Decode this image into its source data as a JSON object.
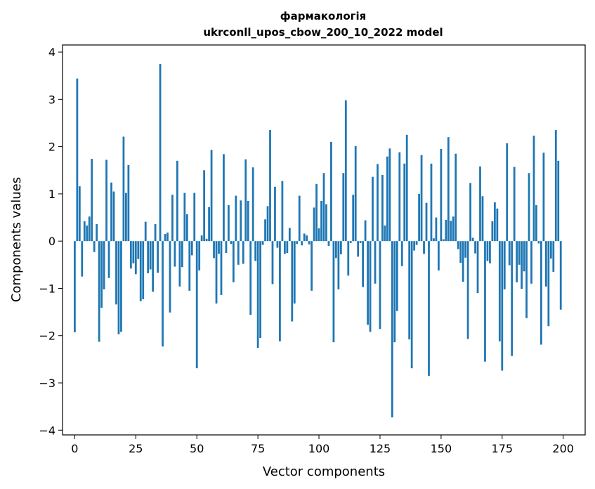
{
  "chart_data": {
    "type": "bar",
    "title": "фармакологія",
    "subtitle": "ukrconll_upos_cbow_200_10_2022 model",
    "xlabel": "Vector components",
    "ylabel": "Components values",
    "xlim": [
      -5,
      209
    ],
    "ylim": [
      -4.1,
      4.15
    ],
    "xticks": [
      0,
      25,
      50,
      75,
      100,
      125,
      150,
      175,
      200
    ],
    "yticks": [
      -4,
      -3,
      -2,
      -1,
      0,
      1,
      2,
      3,
      4
    ],
    "xtick_labels": [
      "0",
      "25",
      "50",
      "75",
      "100",
      "125",
      "150",
      "175",
      "200"
    ],
    "ytick_labels": [
      "−4",
      "−3",
      "−2",
      "−1",
      "0",
      "1",
      "2",
      "3",
      "4"
    ],
    "grid": false,
    "bar_color": "#1f77b4",
    "x": [
      0,
      1,
      2,
      3,
      4,
      5,
      6,
      7,
      8,
      9,
      10,
      11,
      12,
      13,
      14,
      15,
      16,
      17,
      18,
      19,
      20,
      21,
      22,
      23,
      24,
      25,
      26,
      27,
      28,
      29,
      30,
      31,
      32,
      33,
      34,
      35,
      36,
      37,
      38,
      39,
      40,
      41,
      42,
      43,
      44,
      45,
      46,
      47,
      48,
      49,
      50,
      51,
      52,
      53,
      54,
      55,
      56,
      57,
      58,
      59,
      60,
      61,
      62,
      63,
      64,
      65,
      66,
      67,
      68,
      69,
      70,
      71,
      72,
      73,
      74,
      75,
      76,
      77,
      78,
      79,
      80,
      81,
      82,
      83,
      84,
      85,
      86,
      87,
      88,
      89,
      90,
      91,
      92,
      93,
      94,
      95,
      96,
      97,
      98,
      99,
      100,
      101,
      102,
      103,
      104,
      105,
      106,
      107,
      108,
      109,
      110,
      111,
      112,
      113,
      114,
      115,
      116,
      117,
      118,
      119,
      120,
      121,
      122,
      123,
      124,
      125,
      126,
      127,
      128,
      129,
      130,
      131,
      132,
      133,
      134,
      135,
      136,
      137,
      138,
      139,
      140,
      141,
      142,
      143,
      144,
      145,
      146,
      147,
      148,
      149,
      150,
      151,
      152,
      153,
      154,
      155,
      156,
      157,
      158,
      159,
      160,
      161,
      162,
      163,
      164,
      165,
      166,
      167,
      168,
      169,
      170,
      171,
      172,
      173,
      174,
      175,
      176,
      177,
      178,
      179,
      180,
      181,
      182,
      183,
      184,
      185,
      186,
      187,
      188,
      189,
      190,
      191,
      192,
      193,
      194,
      195,
      196,
      197,
      198,
      199
    ],
    "values": [
      -1.93,
      3.44,
      1.16,
      -0.75,
      0.42,
      0.33,
      0.52,
      1.74,
      -0.23,
      0.36,
      -2.13,
      -1.41,
      -1.02,
      1.72,
      -0.78,
      1.24,
      1.05,
      -1.34,
      -1.97,
      -1.92,
      2.21,
      1.02,
      1.61,
      -0.58,
      -0.47,
      -0.7,
      -0.38,
      -1.27,
      -1.23,
      0.41,
      -0.68,
      -0.6,
      -1.07,
      0.36,
      -0.67,
      3.75,
      -2.23,
      0.15,
      0.18,
      -1.51,
      0.98,
      -0.54,
      1.7,
      -0.96,
      -0.55,
      1.02,
      0.57,
      -1.05,
      -0.3,
      1.02,
      -2.69,
      -0.62,
      0.12,
      1.5,
      0.05,
      0.72,
      1.93,
      -0.36,
      -1.32,
      -0.27,
      -1.14,
      1.84,
      -0.25,
      0.76,
      -0.06,
      -0.87,
      0.96,
      -0.5,
      0.86,
      -0.48,
      1.73,
      0.85,
      -1.56,
      1.56,
      -0.42,
      -2.26,
      -2.05,
      -0.08,
      0.46,
      0.74,
      2.35,
      -0.91,
      1.15,
      -0.14,
      -2.12,
      1.27,
      -0.27,
      -0.25,
      0.28,
      -1.7,
      -1.32,
      -0.06,
      0.96,
      -0.09,
      0.16,
      0.12,
      -0.07,
      -1.05,
      0.71,
      1.21,
      0.27,
      0.85,
      1.44,
      0.78,
      -0.1,
      2.1,
      -2.14,
      -0.36,
      -1.02,
      -0.28,
      1.44,
      2.98,
      -0.73,
      -0.04,
      0.98,
      2.01,
      -0.33,
      -0.04,
      -0.97,
      0.44,
      -1.77,
      -1.92,
      1.36,
      -0.9,
      1.63,
      -1.86,
      1.4,
      0.33,
      1.79,
      1.96,
      -3.73,
      -2.14,
      -1.48,
      1.88,
      -0.53,
      1.64,
      2.25,
      -2.08,
      -2.69,
      -0.2,
      -0.08,
      1.0,
      1.82,
      -0.27,
      0.81,
      -2.85,
      1.64,
      0.06,
      0.5,
      -0.62,
      1.95,
      0.04,
      0.45,
      2.2,
      0.43,
      0.52,
      1.85,
      -0.17,
      -0.46,
      -0.86,
      -0.35,
      -2.07,
      1.23,
      0.07,
      -0.26,
      -1.1,
      1.58,
      0.95,
      -2.55,
      -0.42,
      -0.47,
      0.42,
      0.82,
      0.69,
      -2.12,
      -2.74,
      -1.02,
      2.07,
      -0.51,
      -2.43,
      1.57,
      -0.87,
      -0.5,
      -1.01,
      -0.64,
      -1.63,
      1.44,
      -0.9,
      2.23,
      0.76,
      -0.05,
      -2.19,
      1.87,
      -0.96,
      -1.8,
      -0.37,
      -0.65,
      2.35,
      1.7,
      -1.45
    ]
  }
}
